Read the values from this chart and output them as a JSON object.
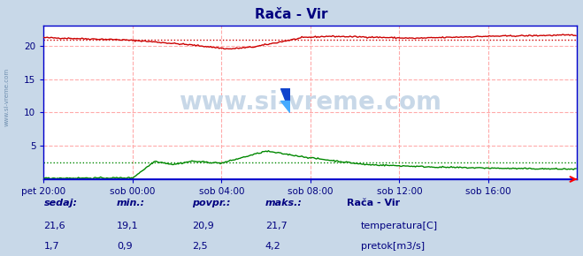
{
  "title": "Rača - Vir",
  "title_color": "#000080",
  "fig_bg_color": "#c8d8e8",
  "plot_bg_color": "#ffffff",
  "x_label_color": "#000080",
  "y_label_color": "#000080",
  "border_color": "#0000bb",
  "watermark_text": "www.si-vreme.com",
  "watermark_color": "#c8d8e8",
  "watermark_fontsize": 20,
  "tick_labels": [
    "pet 20:00",
    "sob 00:00",
    "sob 04:00",
    "sob 08:00",
    "sob 12:00",
    "sob 16:00"
  ],
  "tick_positions": [
    0,
    72,
    144,
    216,
    288,
    360
  ],
  "total_points": 432,
  "ylim": [
    0,
    23
  ],
  "yticks": [
    5,
    10,
    15,
    20
  ],
  "temp_color": "#cc0000",
  "flow_color": "#008800",
  "temp_avg": 20.9,
  "flow_avg": 2.5,
  "grid_color": "#ffaaaa",
  "legend_title": "Rača - Vir",
  "legend_title_color": "#000080",
  "footer_color": "#000080",
  "temp_stats": {
    "sedaj": "21,6",
    "min": "19,1",
    "povpr": "20,9",
    "maks": "21,7"
  },
  "flow_stats": {
    "sedaj": "1,7",
    "min": "0,9",
    "povpr": "2,5",
    "maks": "4,2"
  },
  "legend_labels": [
    "temperatura[C]",
    "pretok[m3/s]"
  ],
  "legend_colors": [
    "#cc0000",
    "#008800"
  ],
  "side_text_color": "#7090b0",
  "axis_color": "#0000cc"
}
